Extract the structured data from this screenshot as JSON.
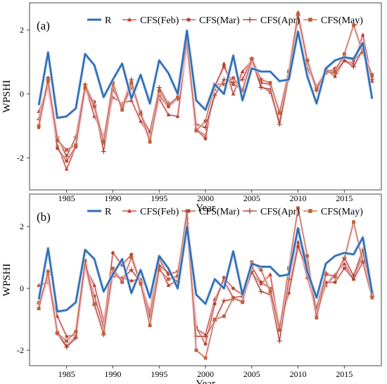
{
  "chart_data": [
    {
      "panel_label": "(a)",
      "type": "line",
      "xlabel": "Year",
      "ylabel": "WPSHI",
      "xlim": [
        1981,
        2019
      ],
      "ylim": [
        -3.0,
        2.85
      ],
      "xticks": [
        1985,
        1990,
        1995,
        2000,
        2005,
        2010,
        2015
      ],
      "yticks": [
        -2,
        0,
        2
      ],
      "grid": false,
      "legend_position": "top",
      "x": [
        1982,
        1983,
        1984,
        1985,
        1986,
        1987,
        1988,
        1989,
        1990,
        1991,
        1992,
        1993,
        1994,
        1995,
        1996,
        1997,
        1998,
        1999,
        2000,
        2001,
        2002,
        2003,
        2004,
        2005,
        2006,
        2007,
        2008,
        2009,
        2010,
        2011,
        2012,
        2013,
        2014,
        2015,
        2016,
        2017,
        2018
      ],
      "series": [
        {
          "name": "R",
          "color": "#2f6db5",
          "marker": "none",
          "values": [
            -0.35,
            1.3,
            -0.75,
            -0.7,
            -0.45,
            1.25,
            0.9,
            -0.1,
            0.45,
            0.95,
            -0.15,
            0.6,
            -0.3,
            1.05,
            0.65,
            0.0,
            1.98,
            -0.2,
            -0.5,
            0.3,
            0.0,
            1.2,
            -0.2,
            0.8,
            0.7,
            0.7,
            0.4,
            0.45,
            1.95,
            0.55,
            -0.3,
            0.8,
            1.05,
            1.15,
            1.1,
            1.6,
            -0.15
          ]
        },
        {
          "name": "CFS(Feb)",
          "color": "#c0392b",
          "marker": "triangle",
          "values": [
            -0.55,
            0.2,
            -1.6,
            -2.35,
            -1.65,
            0.25,
            -0.7,
            -1.3,
            -0.1,
            -0.3,
            -0.2,
            -0.85,
            -1.35,
            -0.15,
            -0.65,
            -0.7,
            1.55,
            -1.1,
            -1.3,
            0.15,
            0.95,
            0.0,
            0.7,
            1.05,
            0.25,
            0.05,
            -0.85,
            0.6,
            2.55,
            0.8,
            0.2,
            0.75,
            0.55,
            1.05,
            0.95,
            1.85,
            0.4
          ]
        },
        {
          "name": "CFS(Mar)",
          "color": "#b5452c",
          "marker": "circle",
          "values": [
            -1.05,
            0.5,
            -1.7,
            -2.1,
            -1.65,
            0.15,
            -0.25,
            -1.55,
            0.3,
            -0.45,
            0.2,
            -0.55,
            -1.45,
            -0.05,
            -0.4,
            -0.15,
            1.7,
            -1.1,
            -1.4,
            0.25,
            0.85,
            0.3,
            0.15,
            1.0,
            0.35,
            0.3,
            -0.55,
            0.5,
            2.4,
            0.95,
            0.25,
            0.65,
            0.8,
            1.15,
            1.05,
            1.35,
            0.55
          ]
        },
        {
          "name": "CFS(Apr)",
          "color": "#9c3b1e",
          "marker": "plus",
          "values": [
            -0.8,
            0.45,
            -1.35,
            -1.95,
            -1.35,
            0.3,
            -0.35,
            -1.8,
            0.15,
            -0.4,
            0.45,
            -0.65,
            -1.2,
            0.2,
            -0.3,
            -0.15,
            1.55,
            -0.95,
            -1.05,
            -0.05,
            0.45,
            0.35,
            0.45,
            1.1,
            0.2,
            0.15,
            -0.95,
            0.55,
            2.45,
            1.05,
            0.1,
            0.7,
            0.65,
            1.05,
            0.85,
            1.4,
            0.45
          ]
        },
        {
          "name": "CFS(May)",
          "color": "#c0603a",
          "marker": "square",
          "values": [
            -1.0,
            0.4,
            -1.45,
            -1.75,
            -1.6,
            0.2,
            -0.4,
            -1.5,
            0.35,
            -0.5,
            0.35,
            -0.6,
            -1.5,
            0.1,
            -0.35,
            -0.1,
            1.6,
            -1.15,
            -0.85,
            0.3,
            0.3,
            0.5,
            0.1,
            1.1,
            0.45,
            0.35,
            -0.6,
            0.7,
            2.5,
            1.05,
            0.15,
            0.75,
            0.7,
            1.25,
            2.15,
            1.3,
            0.6
          ]
        }
      ]
    },
    {
      "panel_label": "(b)",
      "type": "line",
      "xlabel": "Year",
      "ylabel": "WPSHI",
      "xlim": [
        1981,
        2019
      ],
      "ylim": [
        -2.5,
        3.05
      ],
      "xticks": [
        1985,
        1990,
        1995,
        2000,
        2005,
        2010,
        2015
      ],
      "yticks": [
        -2,
        0,
        2
      ],
      "grid": false,
      "legend_position": "top",
      "x": [
        1982,
        1983,
        1984,
        1985,
        1986,
        1987,
        1988,
        1989,
        1990,
        1991,
        1992,
        1993,
        1994,
        1995,
        1996,
        1997,
        1998,
        1999,
        2000,
        2001,
        2002,
        2003,
        2004,
        2005,
        2006,
        2007,
        2008,
        2009,
        2010,
        2011,
        2012,
        2013,
        2014,
        2015,
        2016,
        2017,
        2018
      ],
      "series": [
        {
          "name": "R",
          "color": "#2f6db5",
          "marker": "none",
          "values": [
            -0.35,
            1.3,
            -0.75,
            -0.7,
            -0.45,
            1.25,
            0.95,
            -0.1,
            0.45,
            0.95,
            -0.15,
            0.6,
            -0.3,
            1.05,
            0.65,
            0.0,
            2.0,
            -0.2,
            -0.5,
            0.3,
            0.0,
            1.2,
            -0.2,
            0.8,
            0.7,
            0.7,
            0.4,
            0.45,
            1.95,
            0.55,
            -0.3,
            0.8,
            1.05,
            1.15,
            1.1,
            1.65,
            -0.15
          ]
        },
        {
          "name": "CFS(Feb)",
          "color": "#c0392b",
          "marker": "triangle",
          "values": [
            0.1,
            0.2,
            -0.9,
            -1.55,
            -1.5,
            0.75,
            0.1,
            -1.05,
            0.4,
            0.35,
            0.25,
            0.3,
            -0.85,
            0.7,
            0.1,
            0.25,
            2.3,
            -1.3,
            -1.5,
            -0.35,
            0.25,
            -0.3,
            -0.25,
            0.5,
            0.15,
            0.45,
            -1.3,
            0.0,
            1.5,
            0.35,
            -0.75,
            0.1,
            0.45,
            0.8,
            0.3,
            1.1,
            -0.1
          ]
        },
        {
          "name": "CFS(Mar)",
          "color": "#b5452c",
          "marker": "circle",
          "values": [
            -0.45,
            0.3,
            -1.4,
            -1.85,
            -1.55,
            0.85,
            -0.25,
            -1.25,
            1.15,
            0.75,
            1.1,
            0.15,
            -0.75,
            0.95,
            0.45,
            0.55,
            2.1,
            -1.25,
            -1.8,
            -0.5,
            0.35,
            0.0,
            -0.2,
            0.7,
            0.2,
            0.0,
            -1.2,
            -0.15,
            1.35,
            0.6,
            -0.9,
            0.2,
            0.2,
            0.65,
            0.3,
            0.85,
            -0.2
          ]
        },
        {
          "name": "CFS(Apr)",
          "color": "#9c3b1e",
          "marker": "plus",
          "values": [
            -0.5,
            0.45,
            -1.45,
            -1.9,
            -1.6,
            0.75,
            -0.55,
            -1.5,
            0.5,
            0.3,
            0.6,
            0.2,
            -0.95,
            0.75,
            0.5,
            0.2,
            1.95,
            -1.55,
            -1.55,
            -1.05,
            -0.4,
            -0.35,
            -0.4,
            0.55,
            -0.1,
            -0.2,
            -1.7,
            0.3,
            1.9,
            0.8,
            -0.65,
            0.5,
            0.35,
            1.0,
            0.4,
            1.25,
            -0.25
          ]
        },
        {
          "name": "CFS(May)",
          "color": "#c0603a",
          "marker": "square",
          "values": [
            -0.65,
            0.55,
            -1.45,
            -1.7,
            -1.4,
            0.9,
            -0.5,
            -1.45,
            0.65,
            0.2,
            1.0,
            0.15,
            -1.2,
            0.6,
            0.3,
            0.4,
            2.5,
            -2.0,
            -2.25,
            -1.0,
            -0.9,
            -0.3,
            -0.45,
            0.85,
            0.6,
            -0.1,
            -1.35,
            0.65,
            2.6,
            1.05,
            -0.95,
            0.45,
            0.4,
            0.95,
            2.15,
            0.85,
            -0.3
          ]
        }
      ]
    }
  ]
}
